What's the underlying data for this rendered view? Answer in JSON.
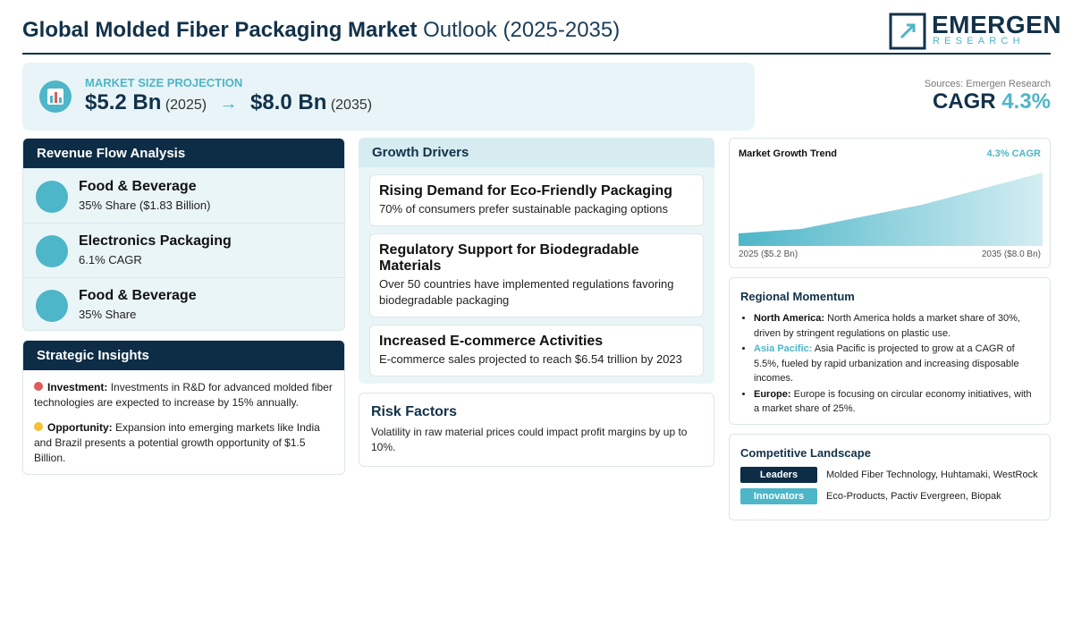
{
  "header": {
    "title_bold": "Global Molded Fiber Packaging Market",
    "title_rest": "Outlook (2025-2035)",
    "logo_main": "EMERGEN",
    "logo_sub": "RESEARCH"
  },
  "projection": {
    "label": "MARKET SIZE PROJECTION",
    "start_value": "$5.2 Bn",
    "start_year": "(2025)",
    "arrow": "→",
    "end_value": "$8.0 Bn",
    "end_year": "(2035)"
  },
  "summary": {
    "source": "Sources: Emergen Research",
    "cagr_label": "CAGR",
    "cagr_value": "4.3%"
  },
  "revenue_flow": {
    "title": "Revenue Flow Analysis",
    "items": [
      {
        "name": "Food & Beverage",
        "detail": "35% Share ($1.83 Billion)"
      },
      {
        "name": "Electronics Packaging",
        "detail": "6.1% CAGR"
      },
      {
        "name": "Food & Beverage",
        "detail": "35% Share"
      }
    ]
  },
  "strategic_insights": {
    "title": "Strategic Insights",
    "items": [
      {
        "label": "Investment:",
        "text": "Investments in R&D for advanced molded fiber technologies are expected to increase by 15% annually."
      },
      {
        "label": "Opportunity:",
        "text": "Expansion into emerging markets like India and Brazil presents a potential growth opportunity of $1.5 Billion."
      }
    ]
  },
  "growth_drivers": {
    "title": "Growth Drivers",
    "items": [
      {
        "title": "Rising Demand for Eco-Friendly Packaging",
        "text": "70% of consumers prefer sustainable packaging options"
      },
      {
        "title": "Regulatory Support for Biodegradable Materials",
        "text": "Over 50 countries have implemented regulations favoring biodegradable packaging"
      },
      {
        "title": "Increased E-commerce Activities",
        "text": "E-commerce sales projected to reach $6.54 trillion by 2023"
      }
    ]
  },
  "risk_factors": {
    "title": "Risk Factors",
    "text": "Volatility in raw material prices could impact profit margins by up to 10%."
  },
  "growth_trend": {
    "title": "Market Growth Trend",
    "badge": "4.3% CAGR",
    "start_label": "2025 ($5.2 Bn)",
    "end_label": "2035 ($8.0 Bn)"
  },
  "regional_momentum": {
    "title": "Regional Momentum",
    "items": [
      {
        "region": "North America:",
        "text": "North America holds a market share of 30%, driven by stringent regulations on plastic use."
      },
      {
        "region": "Asia Pacific:",
        "text": "Asia Pacific is projected to grow at a CAGR of 5.5%, fueled by rapid urbanization and increasing disposable incomes."
      },
      {
        "region": "Europe:",
        "text": "Europe is focusing on circular economy initiatives, with a market share of 25%."
      }
    ]
  },
  "competitive_landscape": {
    "title": "Competitive Landscape",
    "rows": [
      {
        "label": "Leaders",
        "text": "Molded Fiber Technology, Huhtamaki, WestRock"
      },
      {
        "label": "Innovators",
        "text": "Eco-Products, Pactiv Evergreen, Biopak"
      }
    ]
  }
}
